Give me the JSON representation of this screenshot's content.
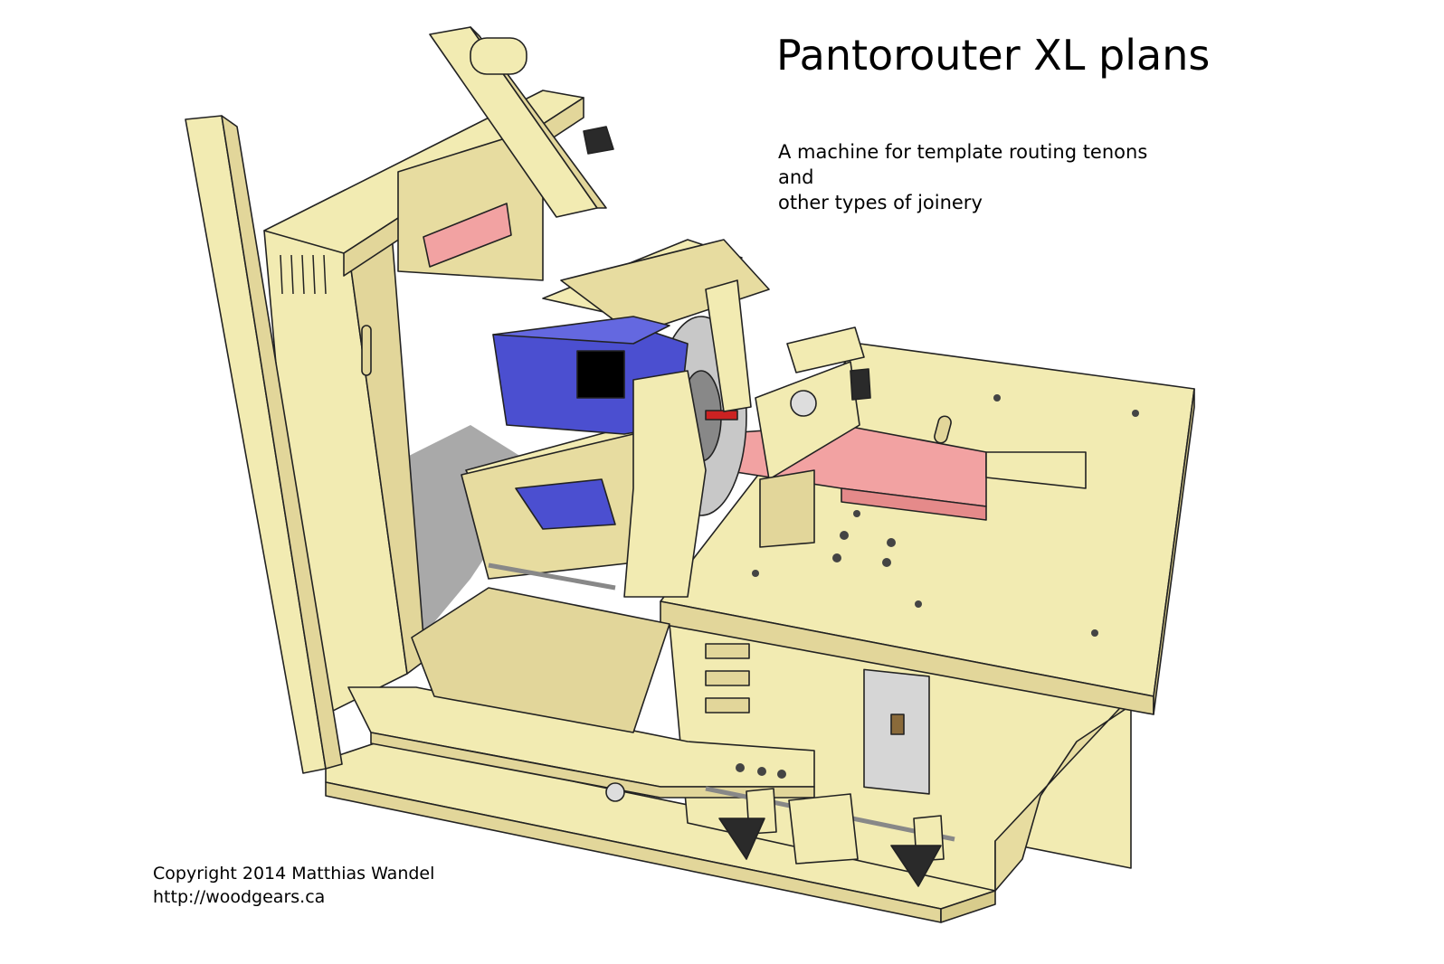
{
  "header": {
    "title": "Pantorouter XL plans",
    "subtitle_line1": "A machine for template routing tenons and",
    "subtitle_line2": "other types of joinery"
  },
  "footer": {
    "copyright": "Copyright 2014 Matthias Wandel",
    "url": "http://woodgears.ca"
  },
  "colors": {
    "wood_light": "#f2ebb2",
    "wood_mid": "#e2d69a",
    "wood_shadow": "#b9b07a",
    "router_blue": "#4b4fd0",
    "workpiece_pink": "#f2a2a2",
    "bit_red": "#cc2222",
    "shadow_gray": "#9a9a9a",
    "knob_dark": "#2a2a2a"
  }
}
